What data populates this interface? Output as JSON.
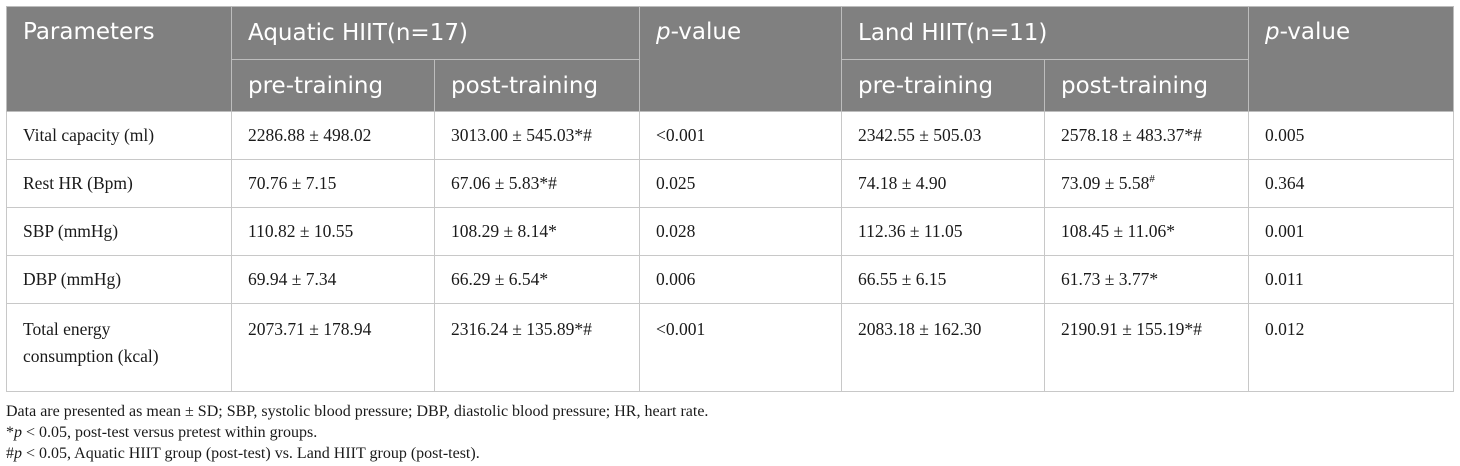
{
  "header": {
    "parameters": "Parameters",
    "group1": "Aquatic HIIT(n=17)",
    "group2": "Land HIIT(n=11)",
    "p_italic": "p",
    "p_rest": "-value",
    "pre": "pre-training",
    "post": "post-training"
  },
  "rows": [
    {
      "param": "Vital capacity (ml)",
      "a_pre": "2286.88 ± 498.02",
      "a_post": "3013.00 ± 545.03*#",
      "a_p": "<0.001",
      "l_pre": "2342.55 ± 505.03",
      "l_post": "2578.18 ± 483.37*#",
      "l_p": "0.005"
    },
    {
      "param": "Rest HR (Bpm)",
      "a_pre": "70.76 ± 7.15",
      "a_post": "67.06 ± 5.83*#",
      "a_p": "0.025",
      "l_pre": "74.18 ± 4.90",
      "l_post": "73.09 ± 5.58",
      "l_post_sup": "#",
      "l_p": "0.364"
    },
    {
      "param": "SBP (mmHg)",
      "a_pre": "110.82 ± 10.55",
      "a_post": "108.29 ± 8.14*",
      "a_p": "0.028",
      "l_pre": "112.36 ± 11.05",
      "l_post": "108.45 ± 11.06*",
      "l_p": "0.001"
    },
    {
      "param": "DBP (mmHg)",
      "a_pre": "69.94 ± 7.34",
      "a_post": "66.29 ± 6.54*",
      "a_p": "0.006",
      "l_pre": "66.55 ± 6.15",
      "l_post": "61.73 ± 3.77*",
      "l_p": "0.011"
    },
    {
      "param_line1": "Total energy",
      "param_line2": "consumption (kcal)",
      "a_pre": "2073.71 ± 178.94",
      "a_post": "2316.24 ± 135.89*#",
      "a_p": "<0.001",
      "l_pre": "2083.18 ± 162.30",
      "l_post": "2190.91 ± 155.19*#",
      "l_p": "0.012"
    }
  ],
  "notes": {
    "line1": "Data are presented as mean ± SD; SBP, systolic blood pressure; DBP, diastolic blood pressure; HR, heart rate.",
    "line2_prefix": "*",
    "line2_italic": "p",
    "line2_rest": " < 0.05, post-test versus pretest within groups.",
    "line3_prefix": "#",
    "line3_italic": "p",
    "line3_rest": " < 0.05, Aquatic HIIT group (post-test) vs. Land HIIT group (post-test)."
  }
}
